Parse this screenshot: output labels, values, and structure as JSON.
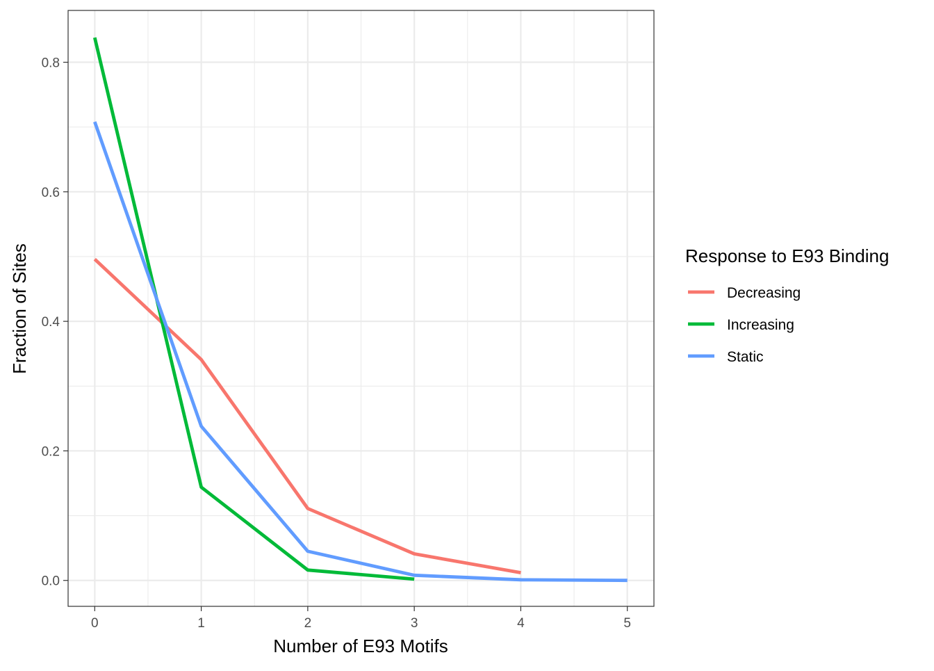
{
  "chart_data": {
    "type": "line",
    "title": "",
    "xlabel": "Number of E93 Motifs",
    "ylabel": "Fraction of Sites",
    "xlim": [
      -0.25,
      5.25
    ],
    "ylim": [
      -0.04,
      0.88
    ],
    "x_ticks": [
      "0",
      "1",
      "2",
      "3",
      "4",
      "5"
    ],
    "y_ticks": [
      "0.0",
      "0.2",
      "0.4",
      "0.6",
      "0.8"
    ],
    "grid": true,
    "legend_position": "right",
    "legend_title": "Response to E93 Binding",
    "series": [
      {
        "name": "Decreasing",
        "color": "#F8766D",
        "x": [
          0,
          1,
          2,
          3,
          4
        ],
        "y": [
          0.496,
          0.341,
          0.111,
          0.041,
          0.012
        ]
      },
      {
        "name": "Increasing",
        "color": "#00BA38",
        "x": [
          0,
          1,
          2,
          3
        ],
        "y": [
          0.838,
          0.144,
          0.016,
          0.002
        ]
      },
      {
        "name": "Static",
        "color": "#619CFF",
        "x": [
          0,
          1,
          2,
          3,
          4,
          5
        ],
        "y": [
          0.708,
          0.238,
          0.045,
          0.008,
          0.001,
          0.0
        ]
      }
    ]
  }
}
